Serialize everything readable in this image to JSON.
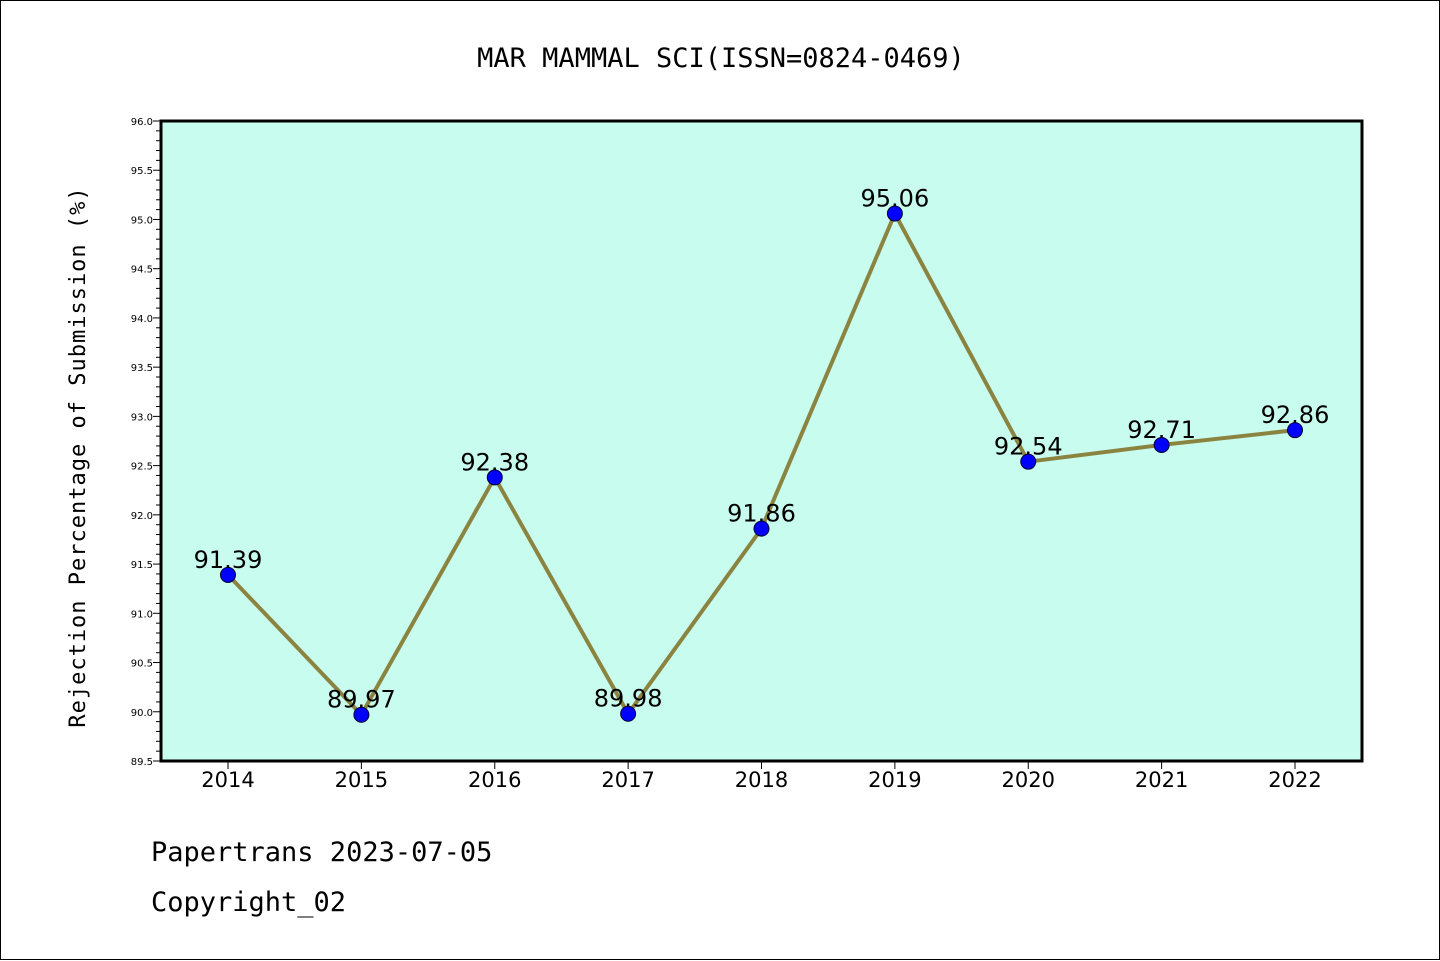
{
  "chart_data": {
    "type": "line",
    "title": "MAR MAMMAL SCI(ISSN=0824-0469)",
    "xlabel": "",
    "ylabel": "Rejection Percentage of Submission (%)",
    "categories": [
      "2014",
      "2015",
      "2016",
      "2017",
      "2018",
      "2019",
      "2020",
      "2021",
      "2022"
    ],
    "series": [
      {
        "values": [
          91.39,
          89.97,
          92.38,
          89.98,
          91.86,
          95.06,
          92.54,
          92.71,
          92.86
        ],
        "labels": [
          "91.39",
          "89.97",
          "92.38",
          "89.98",
          "91.86",
          "95.06",
          "92.54",
          "92.71",
          "92.86"
        ]
      }
    ],
    "ylim": [
      89.5,
      96.0
    ],
    "yticks": [
      "89.5",
      "90.0",
      "90.5",
      "91.0",
      "91.5",
      "92.0",
      "92.5",
      "93.0",
      "93.5",
      "94.0",
      "94.5",
      "95.0",
      "95.5",
      "96.0"
    ],
    "grid": false,
    "legend": "none",
    "colors": {
      "plot_background": "#c8fcee",
      "line": "#8b8440",
      "marker": "#0000ff"
    }
  },
  "footer": {
    "line1": "Papertrans 2023-07-05",
    "line2": "Copyright_02"
  }
}
